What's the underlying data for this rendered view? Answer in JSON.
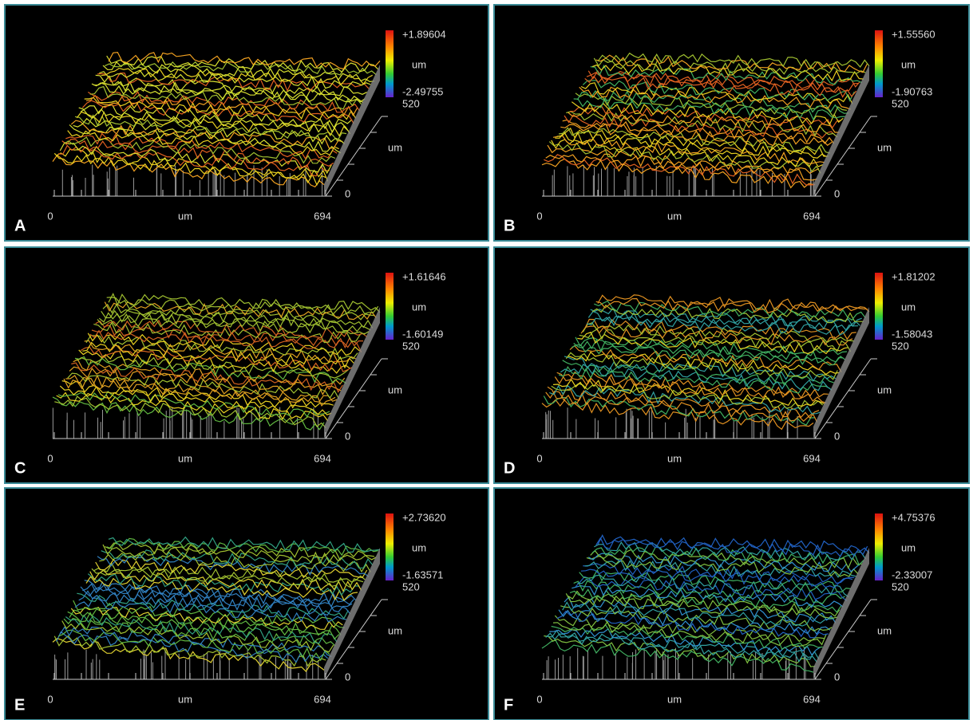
{
  "panels": [
    {
      "label": "A",
      "scale_max": "+1.89604",
      "scale_unit": "um",
      "scale_min": "-2.49755",
      "depth": "520",
      "x_axis": {
        "start": "0",
        "unit": "um",
        "end": "694"
      },
      "y_axis": {
        "unit": "um",
        "start": "0"
      }
    },
    {
      "label": "B",
      "scale_max": "+1.55560",
      "scale_unit": "um",
      "scale_min": "-1.90763",
      "depth": "520",
      "x_axis": {
        "start": "0",
        "unit": "um",
        "end": "694"
      },
      "y_axis": {
        "unit": "um",
        "start": "0"
      }
    },
    {
      "label": "C",
      "scale_max": "+1.61646",
      "scale_unit": "um",
      "scale_min": "-1.60149",
      "depth": "520",
      "x_axis": {
        "start": "0",
        "unit": "um",
        "end": "694"
      },
      "y_axis": {
        "unit": "um",
        "start": "0"
      }
    },
    {
      "label": "D",
      "scale_max": "+1.81202",
      "scale_unit": "um",
      "scale_min": "-1.58043",
      "depth": "520",
      "x_axis": {
        "start": "0",
        "unit": "um",
        "end": "694"
      },
      "y_axis": {
        "unit": "um",
        "start": "0"
      }
    },
    {
      "label": "E",
      "scale_max": "+2.73620",
      "scale_unit": "um",
      "scale_min": "-1.63571",
      "depth": "520",
      "x_axis": {
        "start": "0",
        "unit": "um",
        "end": "694"
      },
      "y_axis": {
        "unit": "um",
        "start": "0"
      }
    },
    {
      "label": "F",
      "scale_max": "+4.75376",
      "scale_unit": "um",
      "scale_min": "-2.33007",
      "depth": "520",
      "x_axis": {
        "start": "0",
        "unit": "um",
        "end": "694"
      },
      "y_axis": {
        "unit": "um",
        "start": "0"
      }
    }
  ]
}
